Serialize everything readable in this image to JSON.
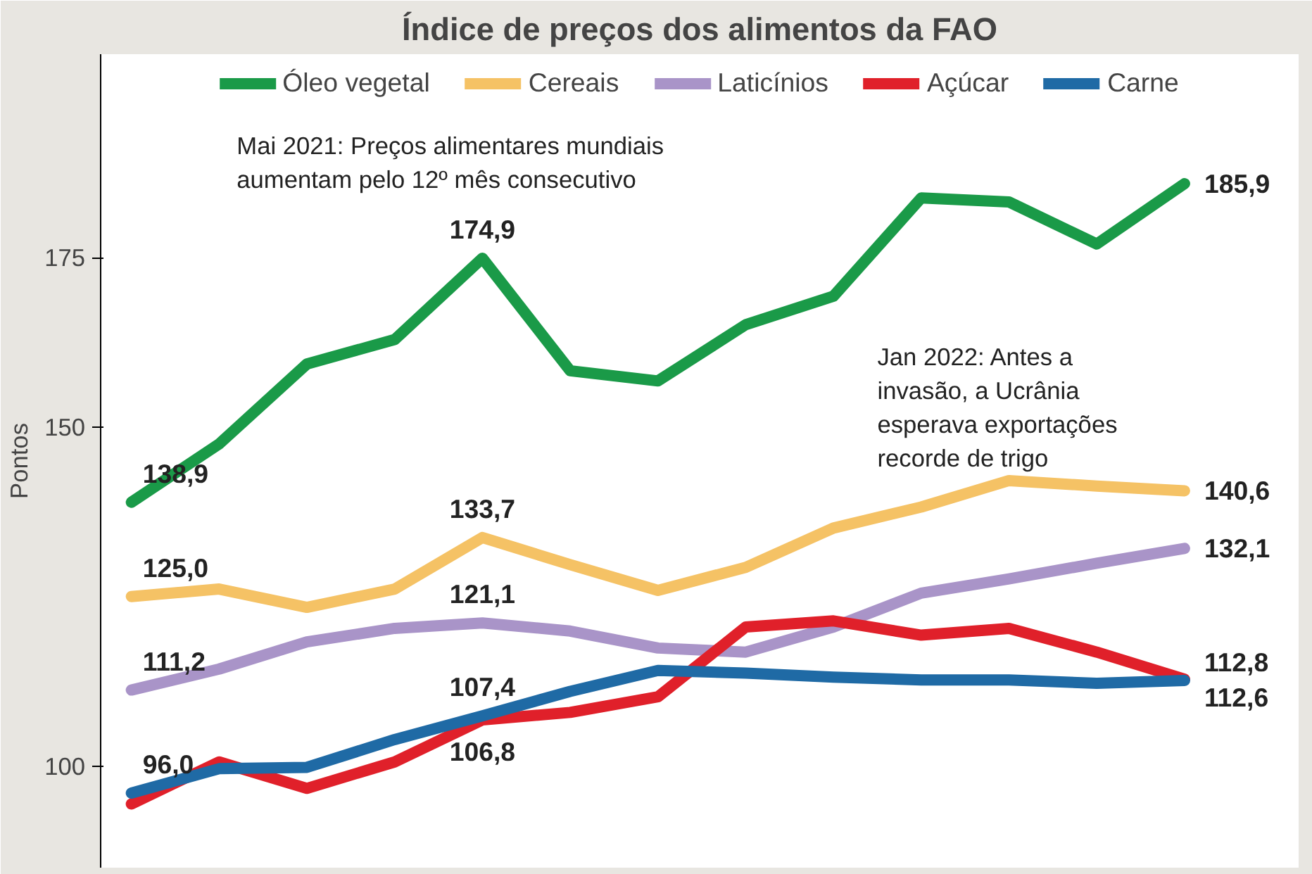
{
  "chart_data": {
    "type": "line",
    "title": "Índice de preços dos alimentos da FAO",
    "ylabel": "Pontos",
    "categories": [
      null,
      null,
      null,
      null,
      null,
      null,
      null,
      null,
      null,
      null,
      null,
      null,
      null
    ],
    "series": [
      {
        "name": "Óleo vegetal",
        "color": "#1a9a48",
        "values": [
          138.9,
          147.5,
          159.3,
          162.9,
          174.9,
          158.3,
          156.8,
          165.1,
          169.3,
          183.8,
          183.2,
          177.0,
          185.9
        ],
        "value_labels": [
          "138,9",
          null,
          null,
          null,
          "174,9",
          null,
          null,
          null,
          null,
          null,
          null,
          null,
          "185,9"
        ]
      },
      {
        "name": "Cereais",
        "color": "#f5c265",
        "values": [
          125.0,
          126.1,
          123.4,
          126.1,
          133.7,
          129.7,
          125.9,
          129.3,
          135.1,
          138.2,
          142.1,
          141.3,
          140.6
        ],
        "value_labels": [
          "125,0",
          null,
          null,
          null,
          "133,7",
          null,
          null,
          null,
          null,
          null,
          null,
          null,
          "140,6"
        ]
      },
      {
        "name": "Laticínios",
        "color": "#a994c8",
        "values": [
          111.2,
          114.3,
          118.3,
          120.3,
          121.1,
          119.9,
          117.4,
          116.8,
          120.5,
          125.5,
          127.6,
          129.9,
          132.1
        ],
        "value_labels": [
          "111,2",
          null,
          null,
          null,
          "121,1",
          null,
          null,
          null,
          null,
          null,
          null,
          null,
          "132,1"
        ]
      },
      {
        "name": "Açúcar",
        "color": "#e0202a",
        "values": [
          94.4,
          100.6,
          96.7,
          100.6,
          106.8,
          107.9,
          110.2,
          120.5,
          121.4,
          119.3,
          120.3,
          116.8,
          112.8
        ],
        "value_labels": [
          null,
          null,
          null,
          null,
          "106,8",
          null,
          null,
          null,
          null,
          null,
          null,
          null,
          "112,8"
        ]
      },
      {
        "name": "Carne",
        "color": "#1f6aa5",
        "values": [
          96.0,
          99.6,
          99.8,
          103.9,
          107.4,
          111.0,
          114.1,
          113.7,
          113.1,
          112.7,
          112.7,
          112.2,
          112.6
        ],
        "value_labels": [
          "96,0",
          null,
          null,
          null,
          "107,4",
          null,
          null,
          null,
          null,
          null,
          null,
          null,
          "112,6"
        ]
      }
    ],
    "ylim": [
      85,
      205
    ],
    "yticks": [
      100,
      150,
      175
    ],
    "grid": false,
    "legend": "top",
    "tick_labels": "y",
    "annotations": [
      "Mai 2021: Preços alimentares mundiais aumentam pelo 12º mês consecutivo",
      "Jan 2022: Antes a invasão, a Ucrânia esperava exportações recorde de trigo"
    ]
  }
}
